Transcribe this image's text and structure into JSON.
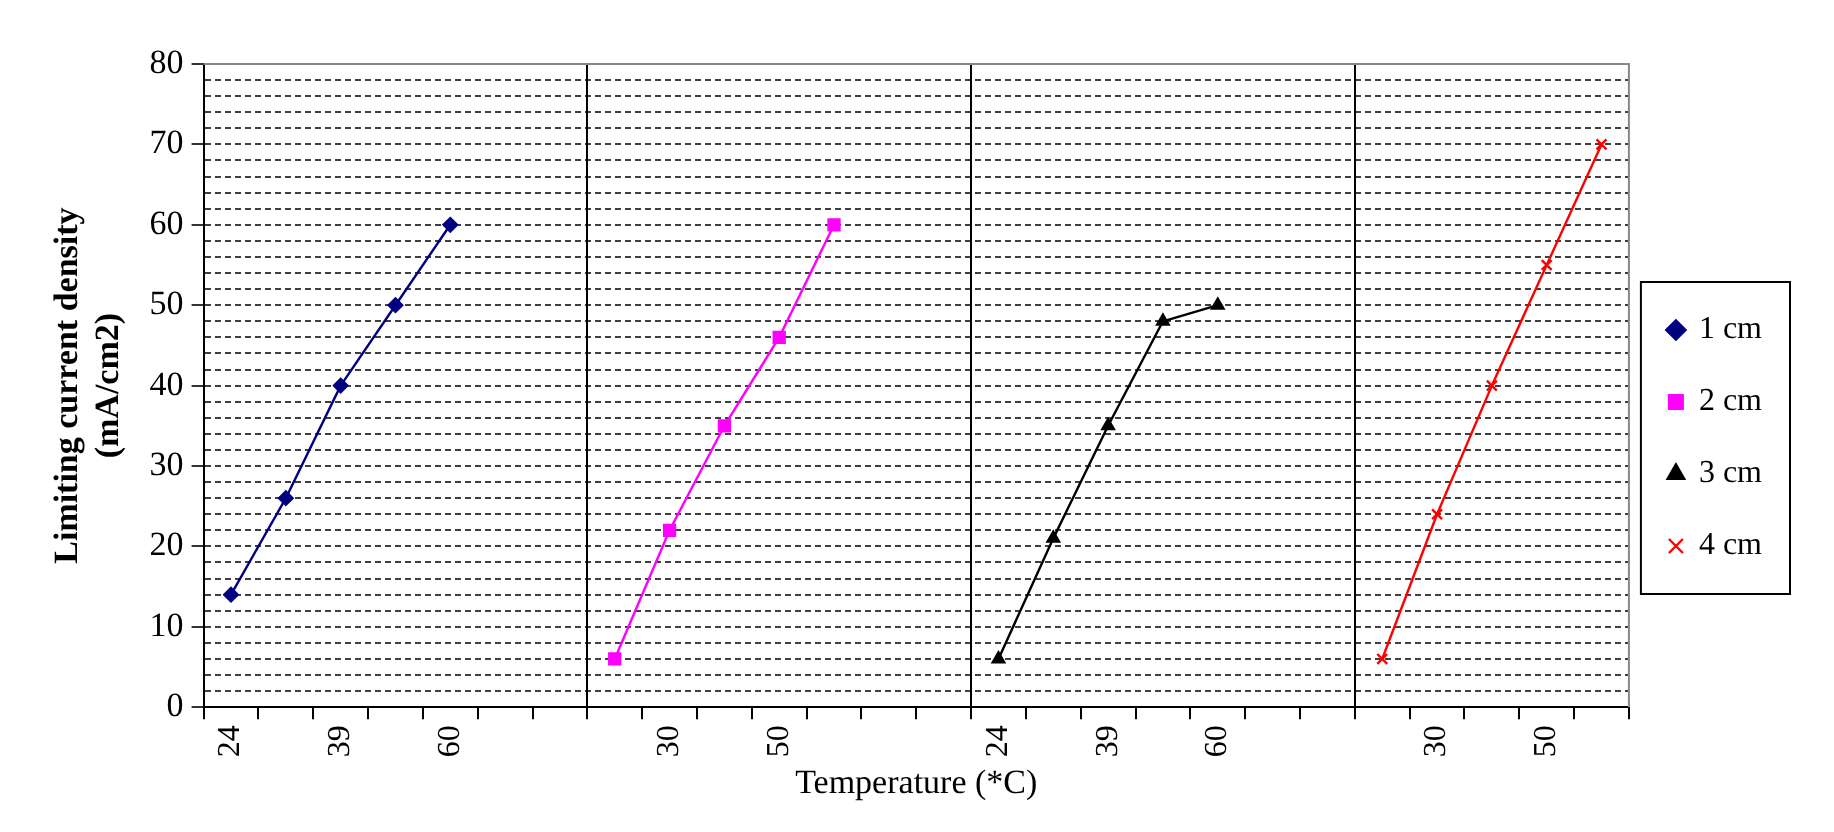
{
  "chart_data": {
    "type": "line",
    "xlabel": "Temperature (*C)",
    "ylabel": "Limiting current density (mA/cm2)",
    "categories": [
      "24",
      null,
      "39",
      null,
      "60",
      null,
      null,
      null,
      "30",
      null,
      "50",
      null,
      null,
      null,
      "24",
      null,
      "39",
      null,
      "60",
      null,
      null,
      null,
      "30",
      null,
      "50",
      null
    ],
    "series": [
      {
        "name": "1 cm",
        "color": "#000080",
        "marker": "diamond",
        "values": [
          14,
          26,
          40,
          50,
          60,
          null,
          null,
          null,
          null,
          null,
          null,
          null,
          null,
          null,
          null,
          null,
          null,
          null,
          null,
          null,
          null,
          null,
          null,
          null,
          null,
          null
        ]
      },
      {
        "name": "2 cm",
        "color": "#ff00ff",
        "marker": "square",
        "values": [
          null,
          null,
          null,
          null,
          null,
          null,
          null,
          6,
          22,
          35,
          46,
          60,
          null,
          null,
          null,
          null,
          null,
          null,
          null,
          null,
          null,
          null,
          null,
          null,
          null,
          null
        ]
      },
      {
        "name": "3 cm",
        "color": "#000000",
        "marker": "triangle",
        "values": [
          null,
          null,
          null,
          null,
          null,
          null,
          null,
          null,
          null,
          null,
          null,
          null,
          null,
          null,
          6,
          21,
          35,
          48,
          50,
          null,
          null,
          null,
          null,
          null,
          null,
          null
        ]
      },
      {
        "name": "4 cm",
        "color": "#ff0000",
        "marker": "cross",
        "values": [
          null,
          null,
          null,
          null,
          null,
          null,
          null,
          null,
          null,
          null,
          null,
          null,
          null,
          null,
          null,
          null,
          null,
          null,
          null,
          null,
          null,
          6,
          24,
          40,
          55,
          70
        ]
      }
    ],
    "ylim": [
      0,
      80
    ],
    "yticks": [
      0,
      {
        "value": 2,
        "label": null
      },
      {
        "value": 4,
        "label": null
      },
      {
        "value": 6,
        "label": null
      },
      {
        "value": 8,
        "label": null
      },
      10,
      {
        "value": 12,
        "label": null
      },
      {
        "value": 14,
        "label": null
      },
      {
        "value": 16,
        "label": null
      },
      {
        "value": 18,
        "label": null
      },
      20,
      {
        "value": 22,
        "label": null
      },
      {
        "value": 24,
        "label": null
      },
      {
        "value": 26,
        "label": null
      },
      {
        "value": 28,
        "label": null
      },
      30,
      {
        "value": 32,
        "label": null
      },
      {
        "value": 34,
        "label": null
      },
      {
        "value": 36,
        "label": null
      },
      {
        "value": 38,
        "label": null
      },
      40,
      {
        "value": 42,
        "label": null
      },
      {
        "value": 44,
        "label": null
      },
      {
        "value": 46,
        "label": null
      },
      {
        "value": 48,
        "label": null
      },
      50,
      {
        "value": 52,
        "label": null
      },
      {
        "value": 54,
        "label": null
      },
      {
        "value": 56,
        "label": null
      },
      {
        "value": 58,
        "label": null
      },
      60,
      {
        "value": 62,
        "label": null
      },
      {
        "value": 64,
        "label": null
      },
      {
        "value": 66,
        "label": null
      },
      {
        "value": 68,
        "label": null
      },
      70,
      {
        "value": 72,
        "label": null
      },
      {
        "value": 74,
        "label": null
      },
      {
        "value": 76,
        "label": null
      },
      {
        "value": 78,
        "label": null
      },
      80
    ],
    "grid": true,
    "legend": "right",
    "line_style": "solid"
  }
}
